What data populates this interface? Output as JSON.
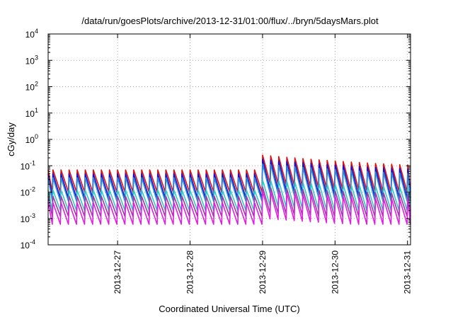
{
  "chart_data": {
    "type": "line",
    "title": "/data/run/goesPlots/archive/2013-12-31/01:00/flux/../bryn/5daysMars.plot",
    "xlabel": "Coordinated Universal Time (UTC)",
    "ylabel": "cGy/day",
    "yscale": "log",
    "ylim": [
      0.0001,
      10000
    ],
    "xlim": [
      "2013-12-26T01:00",
      "2013-12-31T01:00"
    ],
    "grid": true,
    "legend": "none",
    "y_ticks": [
      {
        "base": "10",
        "exp": "-4"
      },
      {
        "base": "10",
        "exp": "-3"
      },
      {
        "base": "10",
        "exp": "-2"
      },
      {
        "base": "10",
        "exp": "-1"
      },
      {
        "base": "10",
        "exp": "0"
      },
      {
        "base": "10",
        "exp": "1"
      },
      {
        "base": "10",
        "exp": "2"
      },
      {
        "base": "10",
        "exp": "3"
      },
      {
        "base": "10",
        "exp": "4"
      }
    ],
    "x_ticks": [
      "2013-12-27",
      "2013-12-28",
      "2013-12-29",
      "2013-12-30",
      "2013-12-31"
    ],
    "series": [
      {
        "color": "#e01010",
        "peak": 0.07,
        "trough": 0.01,
        "event_peak": 0.26
      },
      {
        "color": "#1010d0",
        "peak": 0.05,
        "trough": 0.006,
        "event_peak": 0.18
      },
      {
        "color": "#2a8ad8",
        "peak": 0.035,
        "trough": 0.0045,
        "event_peak": 0.12
      },
      {
        "color": "#30c8c8",
        "peak": 0.012,
        "trough": 0.002,
        "event_peak": 0.03
      },
      {
        "color": "#9a3aa8",
        "peak": 0.007,
        "trough": 0.0012,
        "event_peak": 0.016
      },
      {
        "color": "#e020e0",
        "peak": 0.004,
        "trough": 0.0006,
        "event_peak": 0.011
      }
    ],
    "cycle_hours": 2.67,
    "event": {
      "start": "2013-12-28T23:00",
      "decay_hours": 30
    }
  }
}
